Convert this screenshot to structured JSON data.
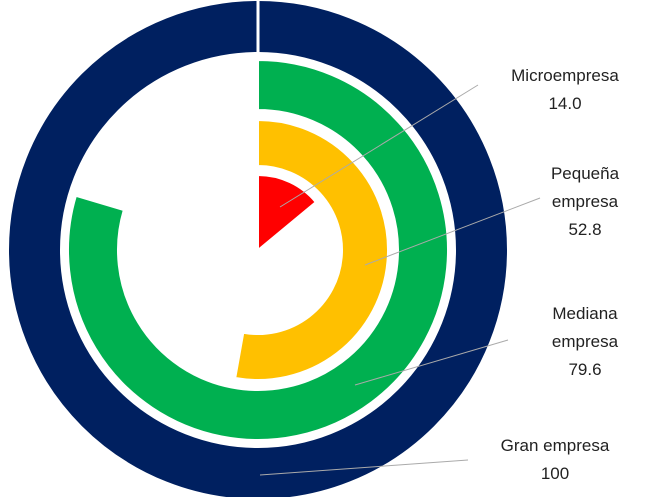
{
  "chart_data": {
    "type": "radial_bar",
    "categories": [
      "Microempresa",
      "Pequeña empresa",
      "Mediana empresa",
      "Gran empresa"
    ],
    "values": [
      14.0,
      52.8,
      79.6,
      100
    ],
    "value_labels": [
      "14.0",
      "52.8",
      "79.6",
      "100"
    ],
    "colors": [
      "#ff0000",
      "#ffc000",
      "#00b050",
      "#002060"
    ]
  }
}
